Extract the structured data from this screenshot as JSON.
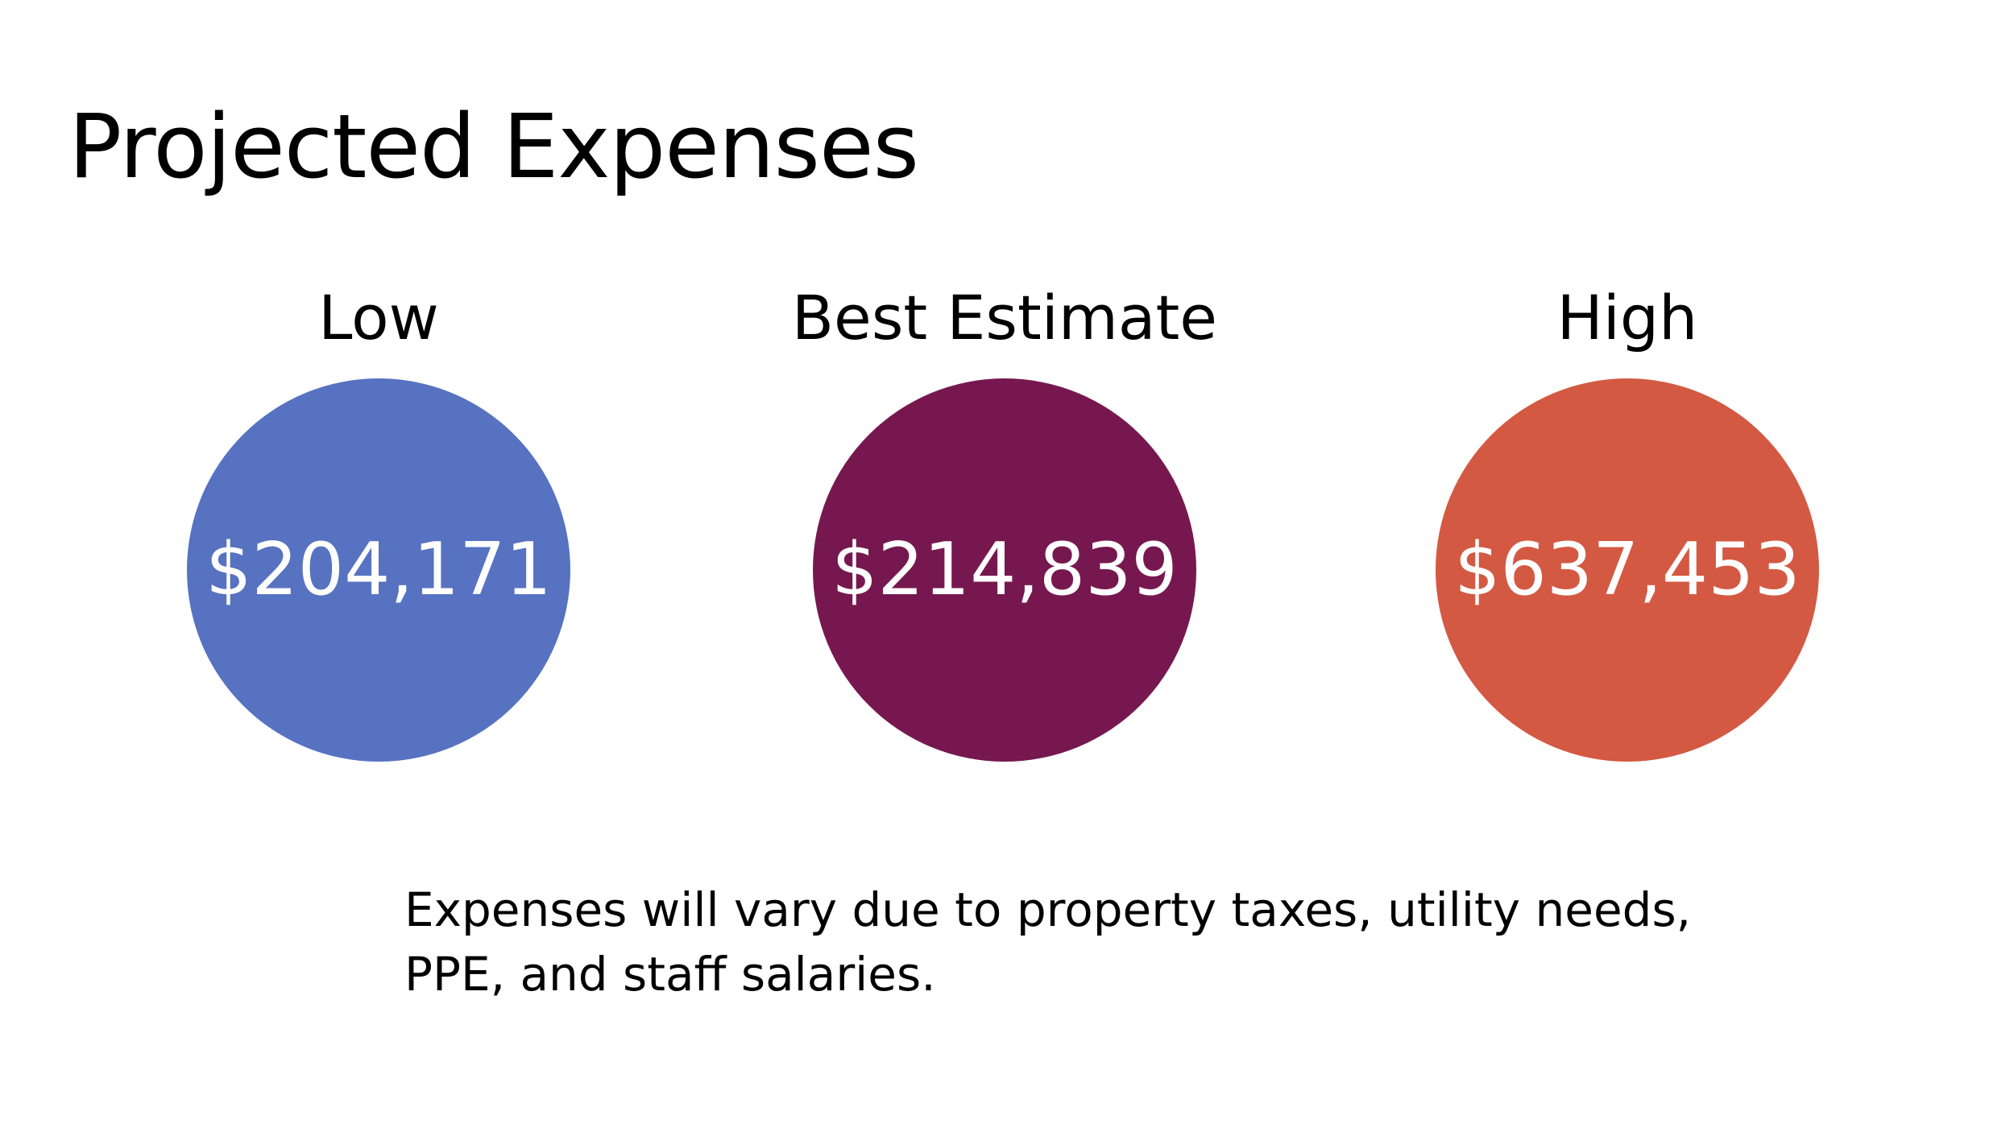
{
  "slide": {
    "title": "Projected Expenses",
    "scenarios": [
      {
        "label": "Low",
        "value": "$204,171",
        "color": "#5772c0"
      },
      {
        "label": "Best Estimate",
        "value": "$214,839",
        "color": "#76184f"
      },
      {
        "label": "High",
        "value": "$637,453",
        "color": "#d35943"
      }
    ],
    "note": {
      "line1": "Expenses will vary due to property taxes, utility needs,",
      "line2": "PPE, and staff salaries."
    }
  }
}
